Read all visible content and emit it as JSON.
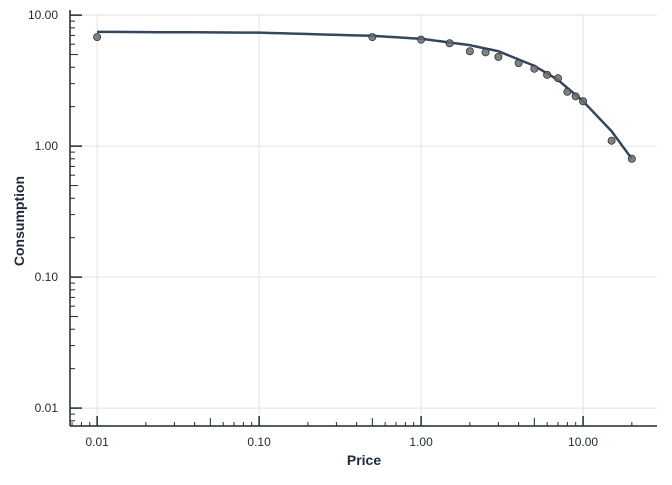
{
  "chart_data": {
    "type": "scatter",
    "title": "",
    "xlabel": "Price",
    "ylabel": "Consumption",
    "xscale": "log",
    "yscale": "log",
    "xlim": [
      0.0068,
      28.6
    ],
    "ylim": [
      0.0073,
      10.2
    ],
    "grid": true,
    "legend": "none",
    "x_ticks": [
      0.01,
      0.1,
      1,
      10
    ],
    "x_tick_labels": [
      "0.01",
      "0.10",
      "1.00",
      "10.00"
    ],
    "y_ticks": [
      0.01,
      0.1,
      1,
      10
    ],
    "y_tick_labels": [
      "0.01",
      "0.10",
      "1.00",
      "10.00"
    ],
    "series": [
      {
        "kind": "points",
        "color": "#6b6b6b",
        "x": [
          0.01,
          0.5,
          1,
          1.5,
          2,
          2.5,
          3,
          4,
          5,
          6,
          7,
          8,
          9,
          10,
          15,
          20
        ],
        "y": [
          6.8,
          6.8,
          6.5,
          6.1,
          5.3,
          5.2,
          4.8,
          4.3,
          3.9,
          3.5,
          3.3,
          2.6,
          2.4,
          2.2,
          1.1,
          0.8
        ]
      },
      {
        "kind": "fitted-curve",
        "color": "#34475e",
        "x": [
          0.01,
          0.1,
          0.5,
          1,
          2,
          3,
          5,
          7,
          10,
          15,
          20
        ],
        "y": [
          7.45,
          7.35,
          6.95,
          6.6,
          5.9,
          5.3,
          4.1,
          3.2,
          2.2,
          1.3,
          0.8
        ]
      }
    ]
  }
}
